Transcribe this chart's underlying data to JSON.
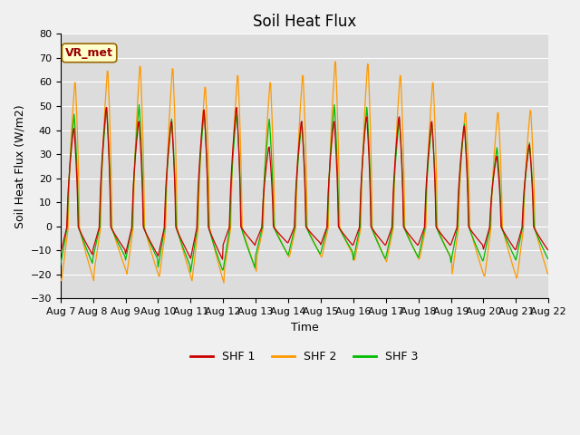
{
  "title": "Soil Heat Flux",
  "ylabel": "Soil Heat Flux (W/m2)",
  "xlabel": "Time",
  "ylim": [
    -30,
    80
  ],
  "yticks": [
    -30,
    -20,
    -10,
    0,
    10,
    20,
    30,
    40,
    50,
    60,
    70,
    80
  ],
  "n_days": 15,
  "shf1_color": "#cc0000",
  "shf2_color": "#ff9900",
  "shf3_color": "#00bb00",
  "bg_color": "#dcdcdc",
  "fig_bg_color": "#f0f0f0",
  "legend_labels": [
    "SHF 1",
    "SHF 2",
    "SHF 3"
  ],
  "annotation_text": "VR_met",
  "annotation_fg": "#990000",
  "annotation_bg": "#ffffcc",
  "annotation_edge": "#996600",
  "day_labels": [
    "Aug 7",
    "Aug 8",
    "Aug 9",
    "Aug 10",
    "Aug 11",
    "Aug 12",
    "Aug 13",
    "Aug 14",
    "Aug 15",
    "Aug 16",
    "Aug 17",
    "Aug 18",
    "Aug 19",
    "Aug 20",
    "Aug 21",
    "Aug 22"
  ],
  "shf1_peaks": [
    42,
    51,
    45,
    45,
    50,
    51,
    34,
    45,
    45,
    47,
    47,
    45,
    43,
    30,
    35
  ],
  "shf2_peaks": [
    62,
    67,
    69,
    68,
    60,
    65,
    62,
    65,
    71,
    70,
    65,
    62,
    49,
    49,
    50
  ],
  "shf3_peaks": [
    47,
    50,
    51,
    45,
    48,
    48,
    45,
    44,
    51,
    50,
    45,
    43,
    43,
    33,
    35
  ],
  "shf1_troughs": [
    -12,
    -10,
    -12,
    -13,
    -14,
    -8,
    -7,
    -7,
    -8,
    -8,
    -8,
    -8,
    -8,
    -10,
    -10
  ],
  "shf2_troughs": [
    -23,
    -19,
    -21,
    -22,
    -24,
    -19,
    -13,
    -13,
    -13,
    -15,
    -14,
    -14,
    -21,
    -22,
    -22
  ],
  "shf3_troughs": [
    -16,
    -13,
    -14,
    -17,
    -19,
    -18,
    -12,
    -12,
    -11,
    -14,
    -13,
    -13,
    -15,
    -14,
    -14
  ],
  "title_fontsize": 12,
  "label_fontsize": 9,
  "tick_fontsize": 8
}
